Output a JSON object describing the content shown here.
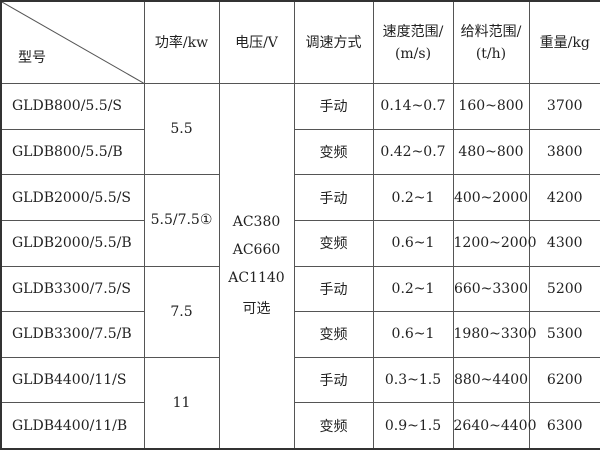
{
  "headers": {
    "model": "型号",
    "power": "功率/kw",
    "voltage": "电压/V",
    "speed_mode": "调速方式",
    "speed_range_1": "速度范围/",
    "speed_range_2": "(m/s)",
    "feed_range_1": "给料范围/",
    "feed_range_2": "(t/h)",
    "weight": "重量/kg"
  },
  "power_groups": [
    "5.5",
    "5.5/7.5①",
    "7.5",
    "11"
  ],
  "voltage_lines": [
    "AC380",
    "AC660",
    "AC1140",
    "可选"
  ],
  "rows": [
    {
      "model": "GLDB800/5.5/S",
      "mode": "手动",
      "speed": "0.14~0.7",
      "feed": "160~800",
      "weight": "3700"
    },
    {
      "model": "GLDB800/5.5/B",
      "mode": "变频",
      "speed": "0.42~0.7",
      "feed": "480~800",
      "weight": "3800"
    },
    {
      "model": "GLDB2000/5.5/S",
      "mode": "手动",
      "speed": "0.2~1",
      "feed": "400~2000",
      "weight": "4200"
    },
    {
      "model": "GLDB2000/5.5/B",
      "mode": "变频",
      "speed": "0.6~1",
      "feed": "1200~2000",
      "weight": "4300"
    },
    {
      "model": "GLDB3300/7.5/S",
      "mode": "手动",
      "speed": "0.2~1",
      "feed": "660~3300",
      "weight": "5200"
    },
    {
      "model": "GLDB3300/7.5/B",
      "mode": "变频",
      "speed": "0.6~1",
      "feed": "1980~3300",
      "weight": "5300"
    },
    {
      "model": "GLDB4400/11/S",
      "mode": "手动",
      "speed": "0.3~1.5",
      "feed": "880~4400",
      "weight": "6200"
    },
    {
      "model": "GLDB4400/11/B",
      "mode": "变频",
      "speed": "0.9~1.5",
      "feed": "2640~4400",
      "weight": "6300"
    }
  ]
}
